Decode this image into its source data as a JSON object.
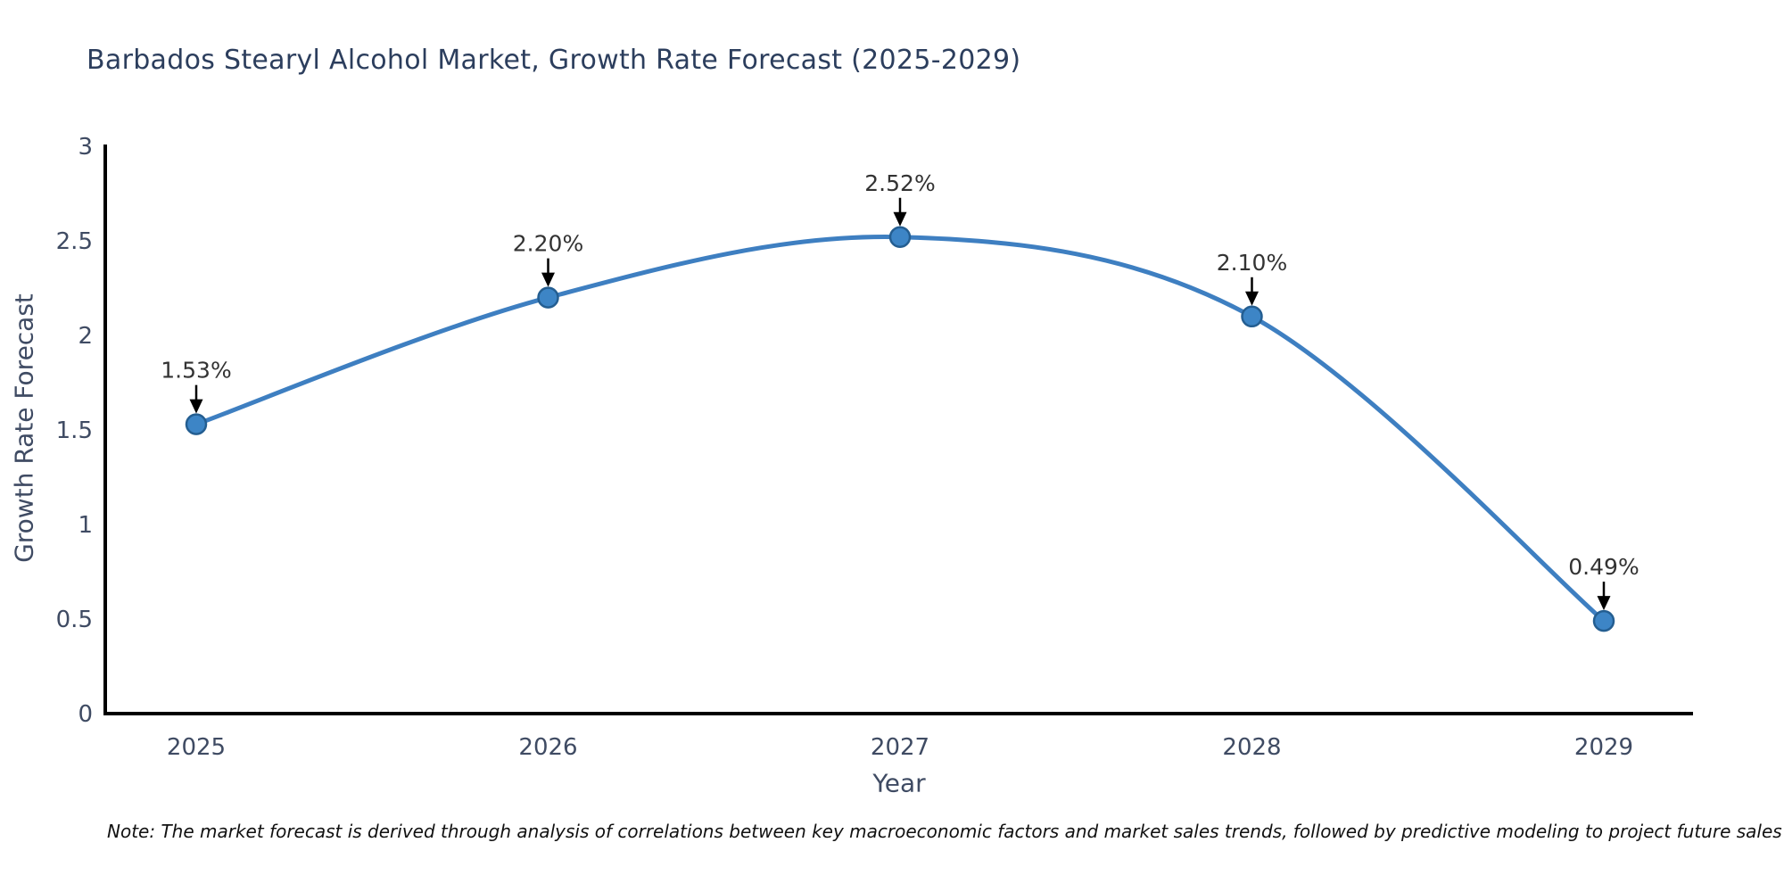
{
  "chart": {
    "title": "Barbados Stearyl Alcohol Market, Growth Rate Forecast (2025-2029)",
    "xlabel": "Year",
    "ylabel": "Growth Rate Forecast",
    "note": "Note: The market forecast is derived through analysis of correlations between key macroeconomic factors and market sales trends, followed by predictive modeling to project future sales"
  },
  "chart_data": {
    "type": "line",
    "x": [
      "2025",
      "2026",
      "2027",
      "2028",
      "2029"
    ],
    "values": [
      1.53,
      2.2,
      2.52,
      2.1,
      0.49
    ],
    "point_labels": [
      "1.53%",
      "2.20%",
      "2.52%",
      "2.10%",
      "0.49%"
    ],
    "title": "Barbados Stearyl Alcohol Market, Growth Rate Forecast (2025-2029)",
    "xlabel": "Year",
    "ylabel": "Growth Rate Forecast",
    "ylim": [
      0,
      3
    ],
    "yticks": [
      0,
      0.5,
      1,
      1.5,
      2,
      2.5,
      3
    ],
    "ytick_labels": [
      "0",
      "0.5",
      "1",
      "1.5",
      "2",
      "2.5",
      "3"
    ],
    "grid": false,
    "legend": "none",
    "marker": "circle",
    "annotations_have_arrows": true,
    "colors": {
      "line": "#3e7fc1",
      "marker_fill": "#3d85c6",
      "marker_edge": "#245e91",
      "annotation_text": "#333333",
      "arrow": "#000000",
      "axis": "#000000",
      "tick_label": "#3f4b63",
      "axis_label": "#3f4b63",
      "title": "#2c3e5d",
      "note_text": "#111111"
    }
  }
}
